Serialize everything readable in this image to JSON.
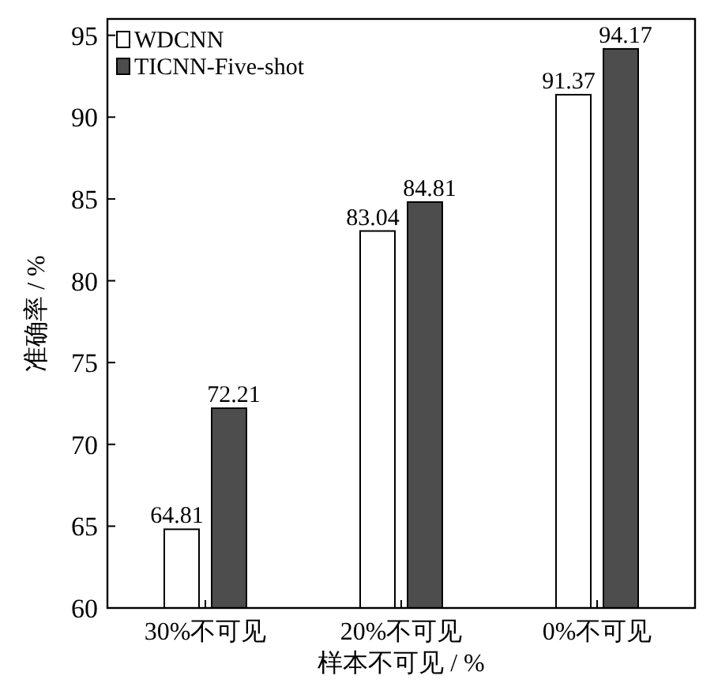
{
  "chart_data": {
    "type": "bar",
    "xlabel": "样本不可见 / %",
    "ylabel": "准确率 / %",
    "categories": [
      "30%不可见",
      "20%不可见",
      "0%不可见"
    ],
    "series": [
      {
        "name": "WDCNN",
        "color": "#ffffff",
        "values": [
          64.81,
          83.04,
          91.37
        ]
      },
      {
        "name": "TICNN-Five-shot",
        "color": "#4d4d4d",
        "values": [
          72.21,
          84.81,
          94.17
        ]
      }
    ],
    "ylim": [
      60,
      96
    ],
    "yticks": [
      60,
      65,
      70,
      75,
      80,
      85,
      90,
      95
    ],
    "data_labels": true,
    "legend": "top left",
    "grid": false
  }
}
